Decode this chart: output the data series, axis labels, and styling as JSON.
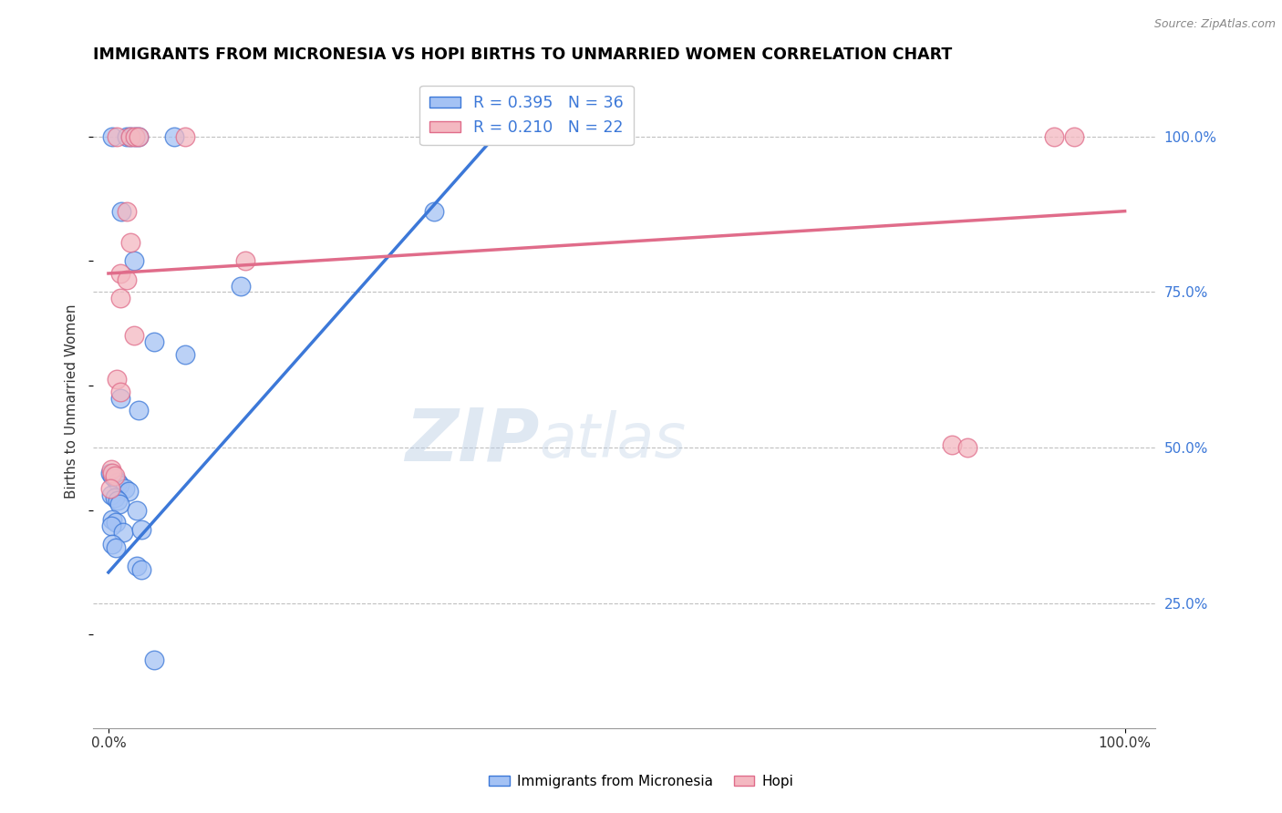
{
  "title": "IMMIGRANTS FROM MICRONESIA VS HOPI BIRTHS TO UNMARRIED WOMEN CORRELATION CHART",
  "source": "Source: ZipAtlas.com",
  "ylabel": "Births to Unmarried Women",
  "legend_blue_label": "Immigrants from Micronesia",
  "legend_pink_label": "Hopi",
  "R_blue": 0.395,
  "N_blue": 36,
  "R_pink": 0.21,
  "N_pink": 22,
  "blue_color": "#a4c2f4",
  "pink_color": "#f4b8c1",
  "blue_line_color": "#3c78d8",
  "pink_line_color": "#e06c8a",
  "watermark_zip": "ZIP",
  "watermark_atlas": "atlas",
  "blue_points": [
    [
      0.4,
      100.0
    ],
    [
      1.8,
      100.0
    ],
    [
      2.2,
      100.0
    ],
    [
      2.6,
      100.0
    ],
    [
      3.0,
      100.0
    ],
    [
      6.5,
      100.0
    ],
    [
      1.3,
      88.0
    ],
    [
      32.0,
      88.0
    ],
    [
      2.5,
      80.0
    ],
    [
      13.0,
      76.0
    ],
    [
      4.5,
      67.0
    ],
    [
      7.5,
      65.0
    ],
    [
      1.2,
      58.0
    ],
    [
      3.0,
      56.0
    ],
    [
      0.2,
      46.0
    ],
    [
      0.4,
      45.5
    ],
    [
      0.6,
      45.0
    ],
    [
      0.9,
      44.5
    ],
    [
      1.1,
      44.0
    ],
    [
      1.6,
      43.5
    ],
    [
      2.0,
      43.0
    ],
    [
      0.3,
      42.5
    ],
    [
      0.6,
      42.0
    ],
    [
      0.9,
      41.5
    ],
    [
      1.1,
      41.0
    ],
    [
      2.8,
      40.0
    ],
    [
      0.4,
      38.5
    ],
    [
      0.7,
      38.0
    ],
    [
      0.25,
      37.5
    ],
    [
      1.4,
      36.5
    ],
    [
      3.2,
      36.8
    ],
    [
      0.4,
      34.5
    ],
    [
      0.7,
      34.0
    ],
    [
      2.8,
      31.0
    ],
    [
      3.2,
      30.5
    ],
    [
      4.5,
      16.0
    ]
  ],
  "pink_points": [
    [
      0.8,
      100.0
    ],
    [
      2.2,
      100.0
    ],
    [
      2.6,
      100.0
    ],
    [
      3.0,
      100.0
    ],
    [
      7.5,
      100.0
    ],
    [
      93.0,
      100.0
    ],
    [
      95.0,
      100.0
    ],
    [
      1.8,
      88.0
    ],
    [
      2.2,
      83.0
    ],
    [
      13.5,
      80.0
    ],
    [
      1.2,
      78.0
    ],
    [
      1.8,
      77.0
    ],
    [
      1.2,
      74.0
    ],
    [
      2.5,
      68.0
    ],
    [
      0.8,
      61.0
    ],
    [
      1.2,
      59.0
    ],
    [
      0.25,
      46.5
    ],
    [
      0.4,
      46.0
    ],
    [
      0.6,
      45.5
    ],
    [
      83.0,
      50.5
    ],
    [
      84.5,
      50.0
    ],
    [
      0.2,
      43.5
    ]
  ],
  "blue_line_x": [
    0.0,
    38.0
  ],
  "blue_line_y": [
    30.0,
    100.0
  ],
  "pink_line_x": [
    0.0,
    100.0
  ],
  "pink_line_y": [
    78.0,
    88.0
  ],
  "xlim": [
    -1.5,
    103
  ],
  "ylim": [
    5.0,
    110.0
  ],
  "yticks": [
    25.0,
    50.0,
    75.0,
    100.0
  ],
  "xticks": [
    0.0,
    100.0
  ],
  "background_color": "#ffffff",
  "grid_color": "#c0c0c0",
  "title_fontsize": 12.5,
  "axis_fontsize": 11
}
